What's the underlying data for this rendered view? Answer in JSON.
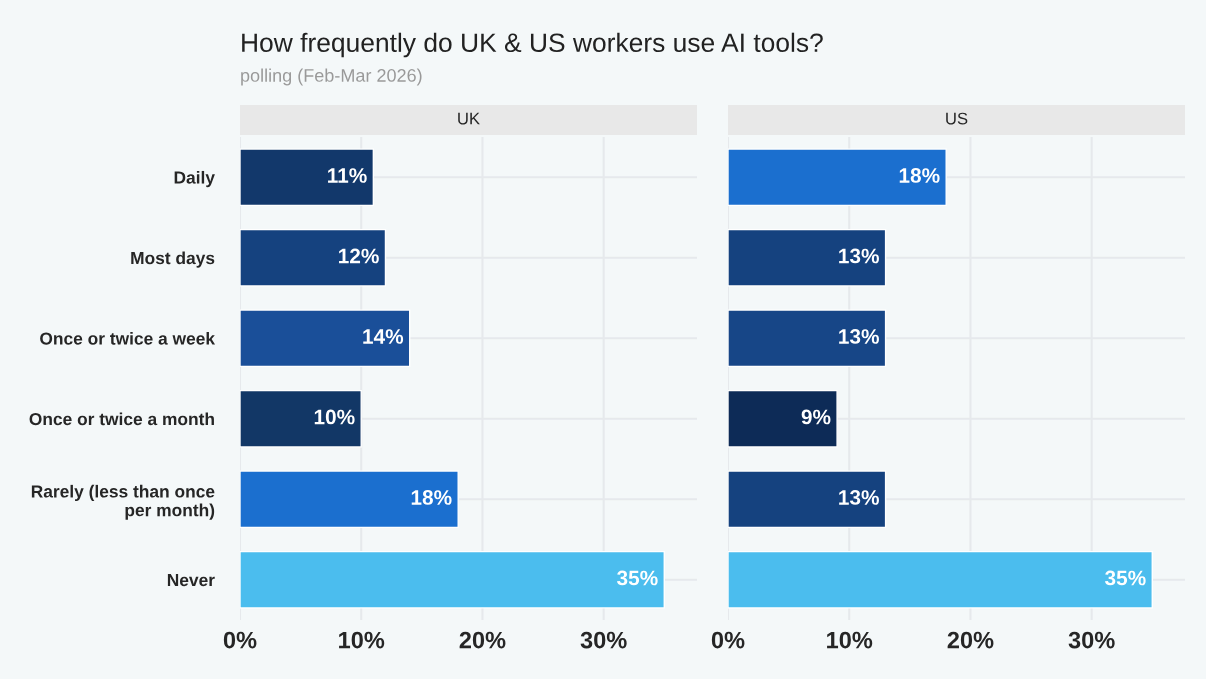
{
  "chart_data": [
    {
      "type": "bar",
      "orientation": "horizontal",
      "title": "How frequently do UK & US workers use AI tools?",
      "subtitle": "polling (Feb-Mar 2026)",
      "annotations": [
        "UK"
      ],
      "categories": [
        "Daily",
        "Most days",
        "Once or twice a week",
        "Once or twice a month",
        "Rarely (less than once per month)",
        "Never"
      ],
      "values": [
        11,
        12,
        14,
        10,
        18,
        35
      ],
      "value_labels": [
        "11%",
        "12%",
        "14%",
        "10%",
        "18%",
        "35%"
      ],
      "colors": [
        "#12386b",
        "#15427f",
        "#1a4f99",
        "#123766",
        "#1b6fcf",
        "#4bbdee"
      ],
      "xlim": [
        0,
        37.7
      ],
      "xticks": [
        {
          "value": 0,
          "label": "0%"
        },
        {
          "value": 10,
          "label": "10%"
        },
        {
          "value": 20,
          "label": "20%"
        },
        {
          "value": 30,
          "label": "30%"
        }
      ],
      "grid": true
    },
    {
      "type": "bar",
      "orientation": "horizontal",
      "annotations": [
        "US"
      ],
      "categories": [
        null,
        null,
        null,
        null,
        null,
        null
      ],
      "values": [
        18,
        13,
        13,
        9,
        13,
        35
      ],
      "value_labels": [
        "18%",
        "13%",
        "13%",
        "9%",
        "13%",
        "35%"
      ],
      "colors": [
        "#1b6fcf",
        "#15427f",
        "#174687",
        "#0d2b57",
        "#15427f",
        "#4bbdee"
      ],
      "xlim": [
        0,
        37.7
      ],
      "xticks": [
        {
          "value": 0,
          "label": "0%"
        },
        {
          "value": 10,
          "label": "10%"
        },
        {
          "value": 20,
          "label": "20%"
        },
        {
          "value": 30,
          "label": "30%"
        }
      ],
      "grid": true,
      "tick_labels": "x"
    }
  ]
}
